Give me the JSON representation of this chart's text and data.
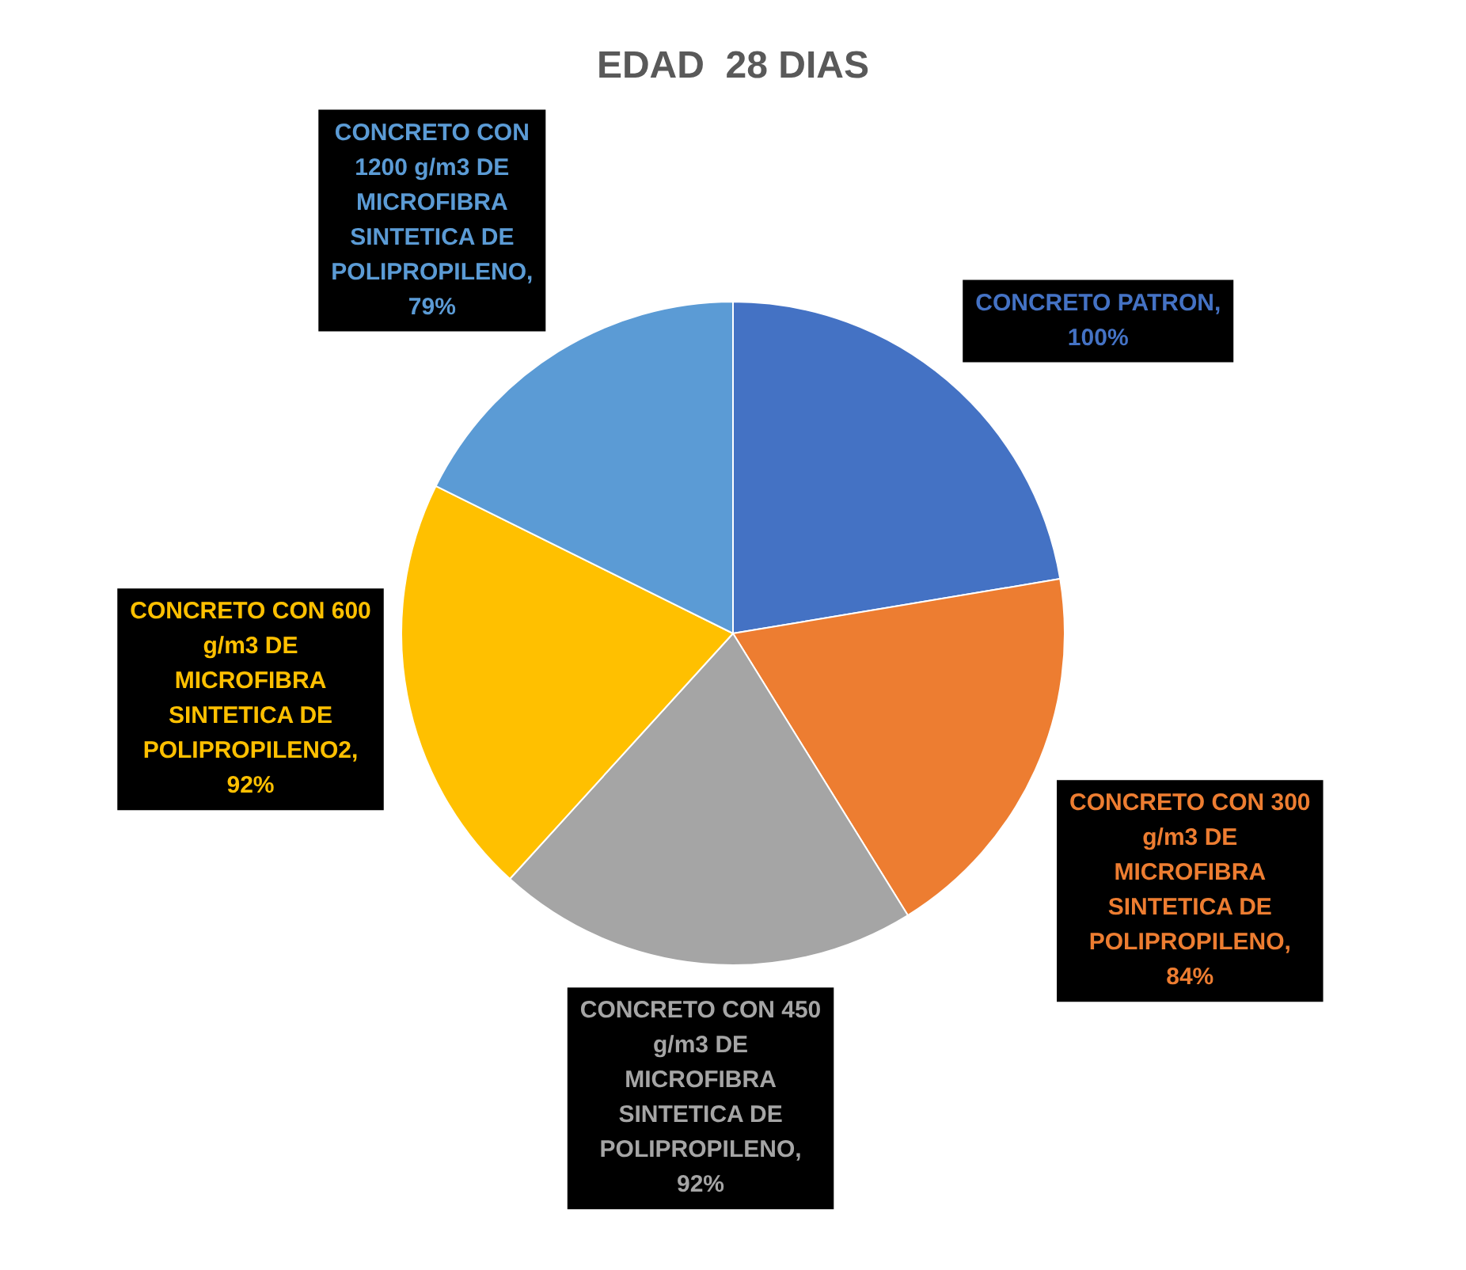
{
  "chart_data": {
    "type": "pie",
    "title": "EDAD  28 DIAS",
    "categories": [
      "CONCRETO PATRON",
      "CONCRETO CON 300 g/m3 DE MICROFIBRA SINTETICA DE POLIPROPILENO",
      "CONCRETO CON 450 g/m3 DE MICROFIBRA SINTETICA DE POLIPROPILENO",
      "CONCRETO CON 600 g/m3 DE MICROFIBRA SINTETICA DE POLIPROPILENO2",
      "CONCRETO CON 1200 g/m3 DE MICROFIBRA SINTETICA DE POLIPROPILENO"
    ],
    "values": [
      100,
      84,
      92,
      92,
      79
    ],
    "value_labels": [
      ", 100%",
      ", 84%",
      ", 92%",
      ", 92%",
      ", 79%"
    ],
    "colors": [
      "#4472c4",
      "#ed7d31",
      "#a5a5a5",
      "#ffc000",
      "#5b9bd5"
    ],
    "legend": false
  }
}
